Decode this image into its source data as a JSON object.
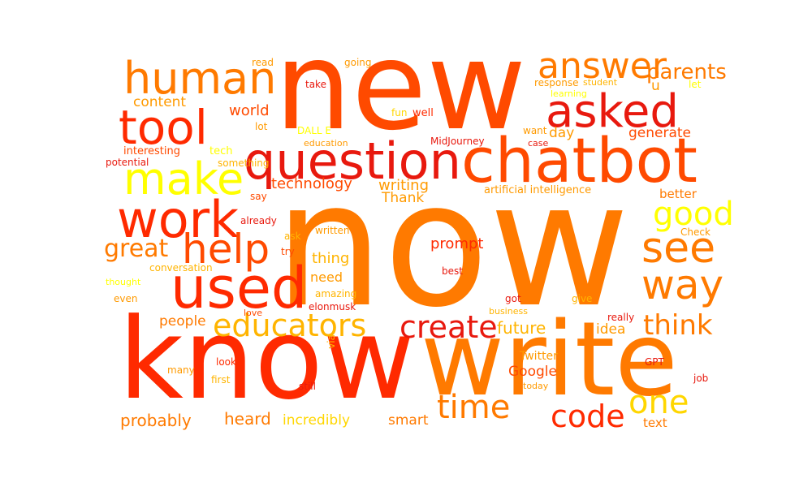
{
  "colors": {
    "darkred": "#e8190e",
    "red": "#ff2a00",
    "redorange": "#ff4a00",
    "orange": "#ff7a00",
    "amber": "#ff9a00",
    "gold": "#ffb400",
    "yellow": "#ffd600",
    "lemon": "#ffff00"
  },
  "words": {
    "now": "now",
    "new": "new",
    "know": "know",
    "write": "write",
    "chatbot": "chatbot",
    "question": "question",
    "used": "used",
    "tool": "tool",
    "work": "work",
    "human": "human",
    "asked": "asked",
    "answer": "answer",
    "make": "make",
    "see": "see",
    "way": "way",
    "help": "help",
    "great": "great",
    "good": "good",
    "educators": "educators",
    "create": "create",
    "time": "time",
    "one": "one",
    "code": "code",
    "think": "think",
    "parents": "parents",
    "content": "content",
    "world": "world",
    "technology": "technology",
    "writing": "writing",
    "thank": "Thank",
    "prompt": "prompt",
    "thing": "thing",
    "need": "need",
    "people": "people",
    "future": "future",
    "idea": "idea",
    "google": "Google",
    "twitter": "Twitter",
    "probably": "probably",
    "heard": "heard",
    "incredibly": "incredibly",
    "smart": "smart",
    "text": "text",
    "day": "day",
    "generate": "generate",
    "better": "better",
    "artificial_intelligence": "artificial intelligence",
    "interesting": "interesting",
    "potential": "potential",
    "something": "something",
    "tech": "tech",
    "dall_e": "DALL E",
    "lot": "lot",
    "education": "education",
    "midjourney": "MidJourney",
    "fun": "fun",
    "well": "well",
    "want": "want",
    "case": "case",
    "read": "read",
    "going": "going",
    "take": "take",
    "response": "response",
    "student": "student",
    "learning": "learning",
    "u": "u",
    "let": "let",
    "say": "say",
    "already": "already",
    "written": "written",
    "ask": "ask",
    "try": "try",
    "check": "Check",
    "best": "best",
    "conversation": "conversation",
    "thought": "thought",
    "even": "even",
    "amazing": "amazing",
    "love": "love",
    "elonmusk": "elonmusk",
    "got": "got",
    "give": "give",
    "business": "business",
    "really": "really",
    "via": "via",
    "look": "look",
    "many": "many",
    "first": "first",
    "still": "still",
    "today": "today",
    "gpt": "GPT",
    "job": "job"
  }
}
